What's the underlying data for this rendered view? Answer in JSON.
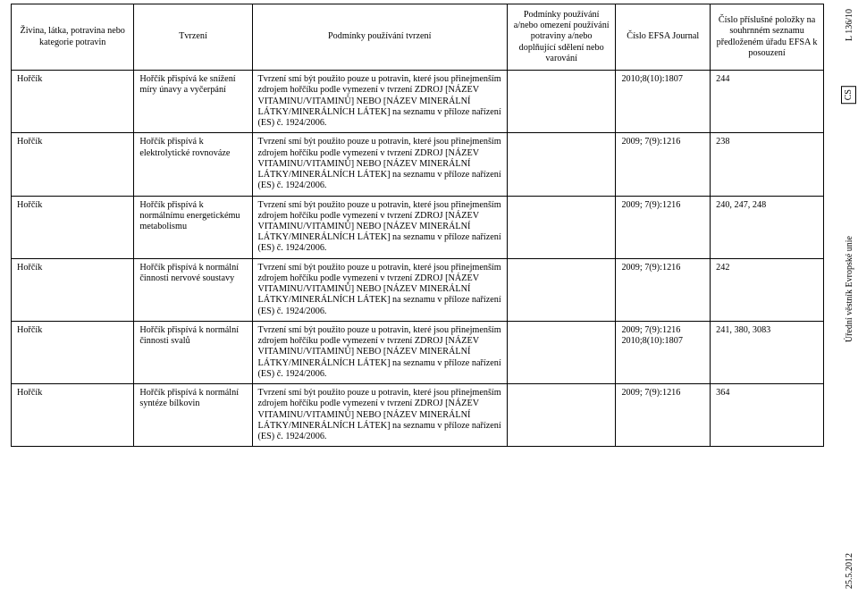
{
  "margins": {
    "top_marker": "L 136/10",
    "lang_code": "CS",
    "journal_name": "Úřední věstník Evropské unie",
    "date": "25.5.2012"
  },
  "header": {
    "col1": "Živina, látka, potravina nebo kategorie potravin",
    "col2": "Tvrzení",
    "col3": "Podmínky používání tvrzení",
    "col4": "Podmínky používání a/nebo omezení používání potraviny a/nebo doplňující sdělení nebo varování",
    "col5": "Číslo EFSA Journal",
    "col6": "Číslo příslušné položky na souhrnném seznamu předloženém úřadu EFSA k posouzení"
  },
  "rows": [
    {
      "nutrient": "Hořčík",
      "claim": "Hořčík přispívá ke snížení míry únavy a vyčerpání",
      "conditions": "Tvrzení smí být použito pouze u potravin, které jsou přinejmenším zdrojem hořčíku podle vymezení v tvrzení ZDROJ [NÁZEV VITAMINU/VITAMINŮ] NEBO [NÁZEV MINERÁLNÍ LÁTKY/MINERÁLNÍCH LÁTEK] na seznamu v příloze nařízení (ES) č. 1924/2006.",
      "restrictions": "",
      "journal": "2010;8(10):1807",
      "consol": "244"
    },
    {
      "nutrient": "Hořčík",
      "claim": "Hořčík přispívá k elektrolytické rovnováze",
      "conditions": "Tvrzení smí být použito pouze u potravin, které jsou přinejmenším zdrojem hořčíku podle vymezení v tvrzení ZDROJ [NÁZEV VITAMINU/VITAMINŮ] NEBO [NÁZEV MINERÁLNÍ LÁTKY/MINERÁLNÍCH LÁTEK] na seznamu v příloze nařízení (ES) č. 1924/2006.",
      "restrictions": "",
      "journal": "2009; 7(9):1216",
      "consol": "238"
    },
    {
      "nutrient": "Hořčík",
      "claim": "Hořčík přispívá k normálnímu energetickému metabolismu",
      "conditions": "Tvrzení smí být použito pouze u potravin, které jsou přinejmenším zdrojem hořčíku podle vymezení v tvrzení ZDROJ [NÁZEV VITAMINU/VITAMINŮ] NEBO [NÁZEV MINERÁLNÍ LÁTKY/MINERÁLNÍCH LÁTEK] na seznamu v příloze nařízení (ES) č. 1924/2006.",
      "restrictions": "",
      "journal": "2009; 7(9):1216",
      "consol": "240, 247, 248"
    },
    {
      "nutrient": "Hořčík",
      "claim": "Hořčík přispívá k normální činnosti nervové soustavy",
      "conditions": "Tvrzení smí být použito pouze u potravin, které jsou přinejmenším zdrojem hořčíku podle vymezení v tvrzení ZDROJ [NÁZEV VITAMINU/VITAMINŮ] NEBO [NÁZEV MINERÁLNÍ LÁTKY/MINERÁLNÍCH LÁTEK] na seznamu v příloze nařízení (ES) č. 1924/2006.",
      "restrictions": "",
      "journal": "2009; 7(9):1216",
      "consol": "242"
    },
    {
      "nutrient": "Hořčík",
      "claim": "Hořčík přispívá k normální činnosti svalů",
      "conditions": "Tvrzení smí být použito pouze u potravin, které jsou přinejmenším zdrojem hořčíku podle vymezení v tvrzení ZDROJ [NÁZEV VITAMINU/VITAMINŮ] NEBO [NÁZEV MINERÁLNÍ LÁTKY/MINERÁLNÍCH LÁTEK] na seznamu v příloze nařízení (ES) č. 1924/2006.",
      "restrictions": "",
      "journal": "2009; 7(9):1216\n2010;8(10):1807",
      "consol": "241, 380, 3083"
    },
    {
      "nutrient": "Hořčík",
      "claim": "Hořčík přispívá k normální syntéze bílkovin",
      "conditions": "Tvrzení smí být použito pouze u potravin, které jsou přinejmenším zdrojem hořčíku podle vymezení v tvrzení ZDROJ [NÁZEV VITAMINU/VITAMINŮ] NEBO [NÁZEV MINERÁLNÍ LÁTKY/MINERÁLNÍCH LÁTEK] na seznamu v příloze nařízení (ES) č. 1924/2006.",
      "restrictions": "",
      "journal": "2009; 7(9):1216",
      "consol": "364"
    }
  ]
}
